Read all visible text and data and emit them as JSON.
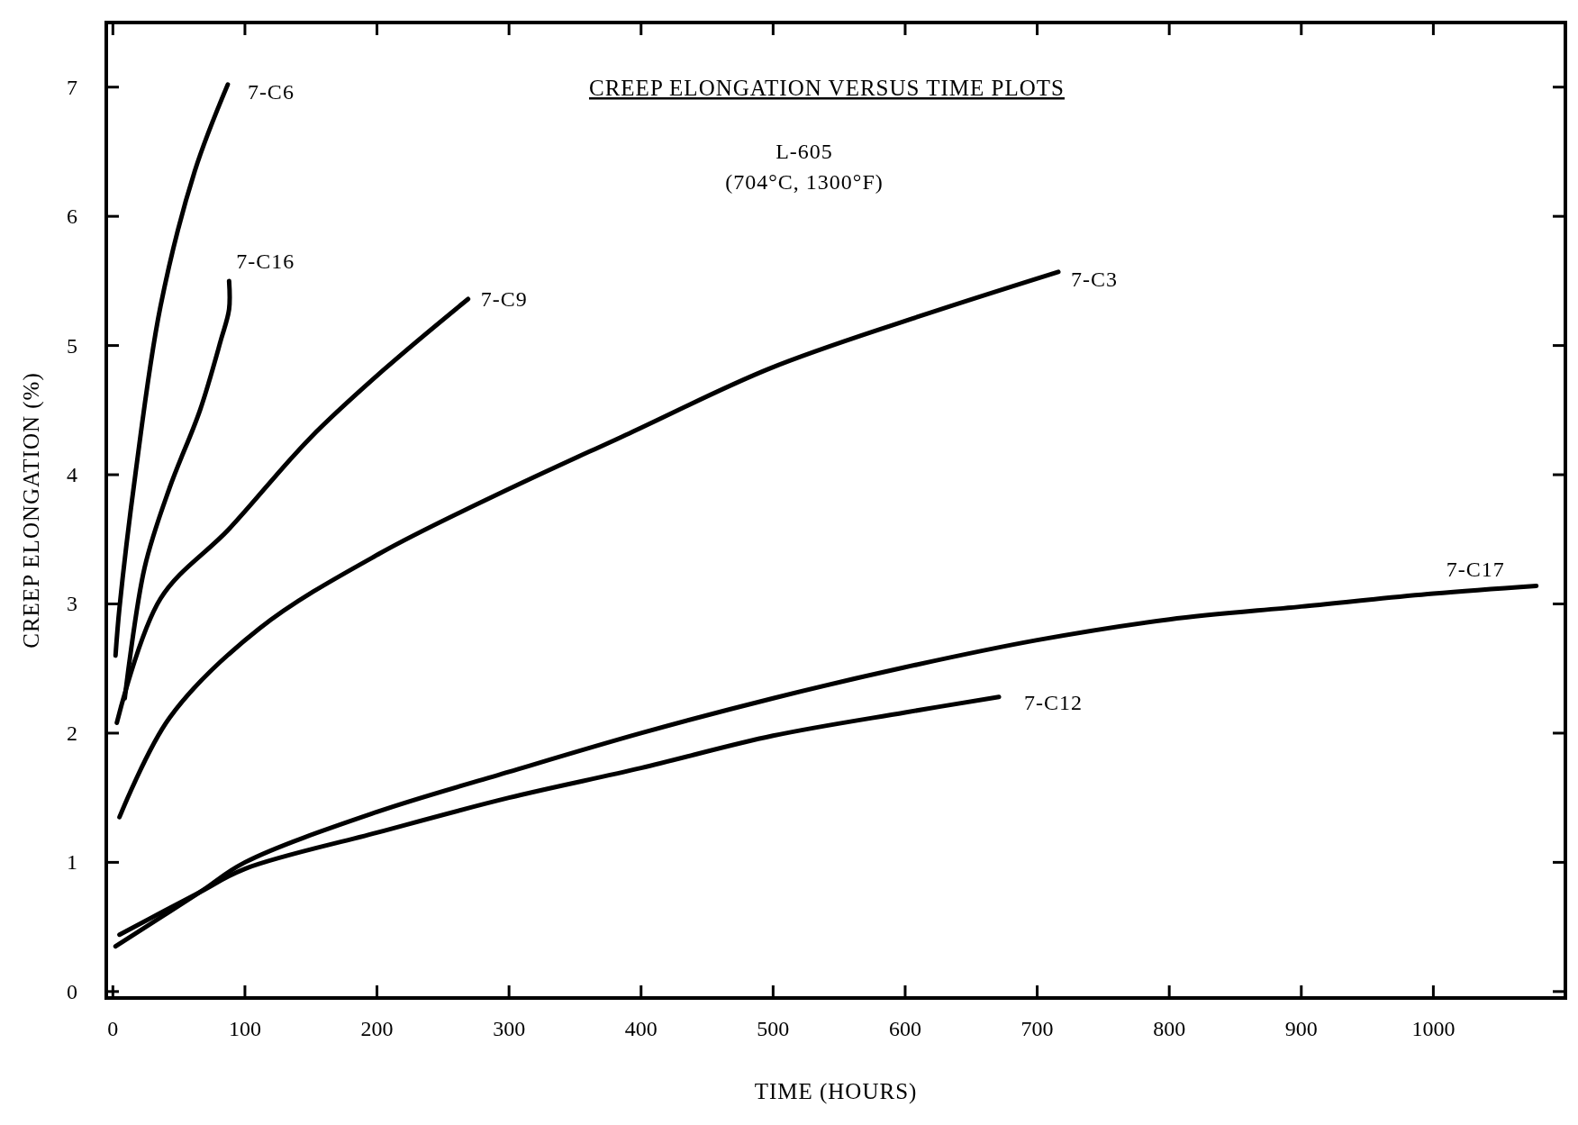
{
  "chart_data": {
    "type": "line",
    "title": "CREEP ELONGATION VERSUS TIME PLOTS",
    "subtitle": "L-605\n(704°C, 1300°F)",
    "xlabel": "TIME (HOURS)",
    "ylabel": "CREEP ELONGATION (%)",
    "xlim": [
      -5,
      1100
    ],
    "ylim": [
      -0.05,
      7.5
    ],
    "xticks": [
      0,
      100,
      200,
      300,
      400,
      500,
      600,
      700,
      800,
      900,
      1000
    ],
    "yticks": [
      0,
      1,
      2,
      3,
      4,
      5,
      6,
      7
    ],
    "grid": false,
    "legend": false,
    "marker": "none",
    "line_style": "solid",
    "series": [
      {
        "name": "7-C6",
        "color": "#000000",
        "x": [
          2,
          5,
          17,
          36,
          62,
          87
        ],
        "values": [
          2.6,
          2.97,
          4.0,
          5.3,
          6.35,
          7.02
        ]
      },
      {
        "name": "7-C16",
        "color": "#000000",
        "x": [
          9,
          24,
          43,
          66,
          82,
          88,
          88
        ],
        "values": [
          2.27,
          3.28,
          3.9,
          4.5,
          5.05,
          5.28,
          5.5
        ]
      },
      {
        "name": "7-C9",
        "color": "#000000",
        "x": [
          3,
          36,
          88,
          149,
          206,
          269
        ],
        "values": [
          2.08,
          3.04,
          3.58,
          4.28,
          4.82,
          5.36
        ]
      },
      {
        "name": "7-C3",
        "color": "#000000",
        "x": [
          5,
          43,
          111,
          202,
          300,
          391,
          497,
          603,
          716
        ],
        "values": [
          1.35,
          2.12,
          2.81,
          3.39,
          3.89,
          4.32,
          4.82,
          5.2,
          5.57
        ]
      },
      {
        "name": "7-C17",
        "color": "#000000",
        "x": [
          2,
          66,
          100,
          200,
          300,
          400,
          500,
          600,
          700,
          800,
          900,
          1000,
          1078
        ],
        "values": [
          0.35,
          0.77,
          1.0,
          1.39,
          1.7,
          2.0,
          2.27,
          2.51,
          2.72,
          2.88,
          2.98,
          3.08,
          3.14
        ]
      },
      {
        "name": "7-C12",
        "color": "#000000",
        "x": [
          5,
          66,
          100,
          200,
          300,
          400,
          500,
          600,
          671
        ],
        "values": [
          0.44,
          0.77,
          0.95,
          1.23,
          1.5,
          1.73,
          1.98,
          2.16,
          2.28
        ]
      }
    ]
  }
}
